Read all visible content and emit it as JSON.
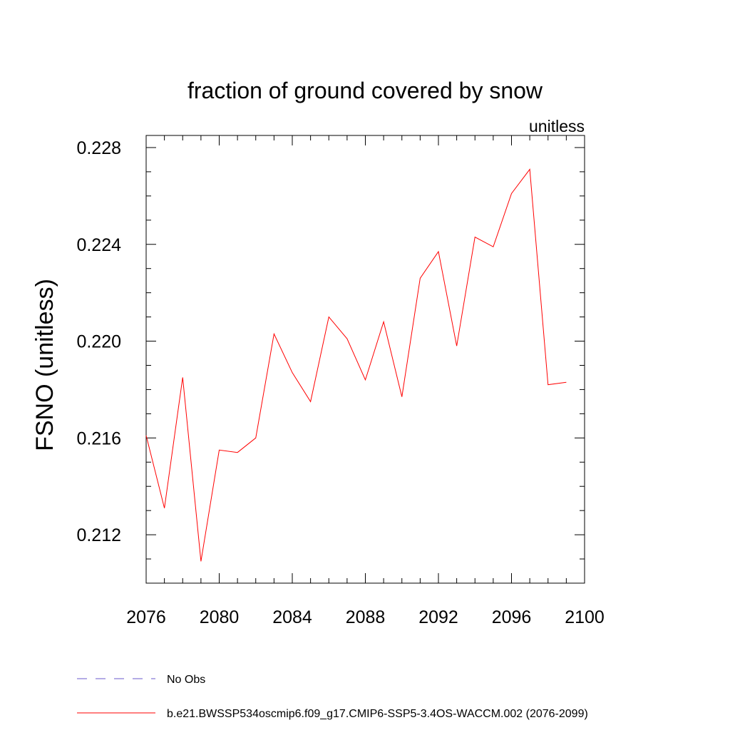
{
  "chart_data": {
    "type": "line",
    "title": "fraction of ground covered by snow",
    "units_label": "unitless",
    "ylabel": "FSNO  (unitless)",
    "xlabel": "",
    "xlim": [
      2076,
      2100
    ],
    "ylim": [
      0.21,
      0.2285
    ],
    "x_ticks": [
      2076,
      2080,
      2084,
      2088,
      2092,
      2096,
      2100
    ],
    "x_tick_labels": [
      "2076",
      "2080",
      "2084",
      "2088",
      "2092",
      "2096",
      "2100"
    ],
    "y_ticks": [
      0.212,
      0.216,
      0.22,
      0.224,
      0.228
    ],
    "y_tick_labels": [
      "0.212",
      "0.216",
      "0.220",
      "0.224",
      "0.228"
    ],
    "grid": false,
    "legend_position": "bottom-left",
    "series": [
      {
        "name": "b.e21.BWSSP534oscmip6.f09_g17.CMIP6-SSP5-3.4OS-WACCM.002 (2076-2099)",
        "color": "#ff0000",
        "style": "solid",
        "x": [
          2076,
          2077,
          2078,
          2079,
          2080,
          2081,
          2082,
          2083,
          2084,
          2085,
          2086,
          2087,
          2088,
          2089,
          2090,
          2091,
          2092,
          2093,
          2094,
          2095,
          2096,
          2097,
          2098,
          2099
        ],
        "y": [
          0.2161,
          0.2131,
          0.2185,
          0.2109,
          0.2155,
          0.2154,
          0.216,
          0.2203,
          0.2187,
          0.2175,
          0.221,
          0.2201,
          0.2184,
          0.2208,
          0.2177,
          0.2226,
          0.2237,
          0.2198,
          0.2243,
          0.2239,
          0.2261,
          0.2271,
          0.2182,
          0.2183
        ]
      }
    ],
    "legend": [
      {
        "label": "No Obs",
        "color": "#6a5acd",
        "style": "dashed"
      },
      {
        "label": "b.e21.BWSSP534oscmip6.f09_g17.CMIP6-SSP5-3.4OS-WACCM.002 (2076-2099)",
        "color": "#ff0000",
        "style": "solid"
      }
    ]
  }
}
